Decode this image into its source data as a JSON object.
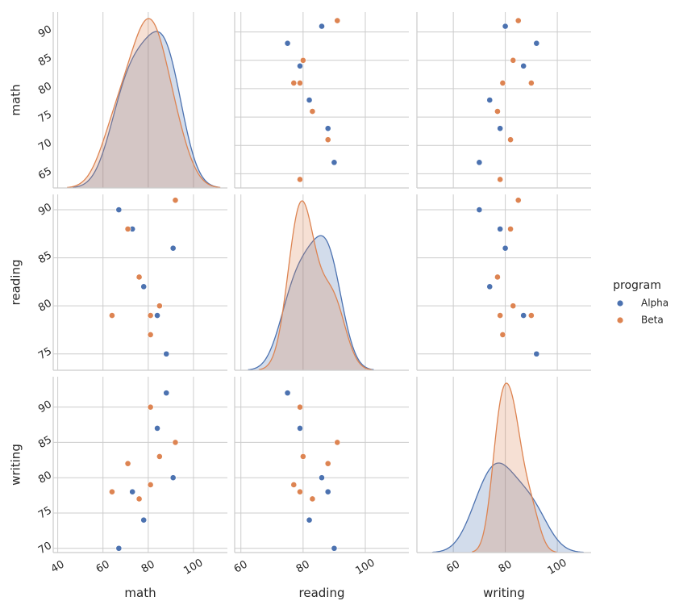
{
  "chart_data": {
    "type": "scatter",
    "subtype": "pairplot",
    "variables": [
      "math",
      "reading",
      "writing"
    ],
    "hue": "program",
    "legend": {
      "title": "program",
      "placement": "right",
      "entries": [
        {
          "name": "Alpha",
          "color": "#4c72b0"
        },
        {
          "name": "Beta",
          "color": "#dd8452"
        }
      ]
    },
    "diagonal": "kde",
    "grid": true,
    "axes": {
      "math": {
        "label": "math",
        "lim_row": [
          62.5,
          93.5
        ],
        "lim_col": [
          38,
          115
        ],
        "row_ticks": [
          65,
          70,
          75,
          80,
          85,
          90
        ],
        "col_ticks": [
          40,
          60,
          80,
          100
        ]
      },
      "reading": {
        "label": "reading",
        "lim_row": [
          73.3,
          91.6
        ],
        "lim_col": [
          58,
          114
        ],
        "row_ticks": [
          75,
          80,
          85,
          90
        ],
        "col_ticks": [
          60,
          80,
          100
        ]
      },
      "writing": {
        "label": "writing",
        "lim_row": [
          69.4,
          94.3
        ],
        "lim_col": [
          46,
          113
        ],
        "row_ticks": [
          70,
          75,
          80,
          85,
          90
        ],
        "col_ticks": [
          60,
          80,
          100
        ]
      }
    },
    "points": {
      "Alpha": [
        {
          "math": 91,
          "reading": 86,
          "writing": 80
        },
        {
          "math": 88,
          "reading": 75,
          "writing": 92
        },
        {
          "math": 84,
          "reading": 79,
          "writing": 87
        },
        {
          "math": 78,
          "reading": 82,
          "writing": 74
        },
        {
          "math": 73,
          "reading": 88,
          "writing": 78
        },
        {
          "math": 67,
          "reading": 90,
          "writing": 70
        }
      ],
      "Beta": [
        {
          "math": 92,
          "reading": 91,
          "writing": 85
        },
        {
          "math": 85,
          "reading": 80,
          "writing": 83
        },
        {
          "math": 81,
          "reading": 79,
          "writing": 90
        },
        {
          "math": 76,
          "reading": 83,
          "writing": 77
        },
        {
          "math": 71,
          "reading": 88,
          "writing": 82
        },
        {
          "math": 64,
          "reading": 79,
          "writing": 78
        },
        {
          "math": 81,
          "reading": 77,
          "writing": 79
        }
      ]
    }
  }
}
